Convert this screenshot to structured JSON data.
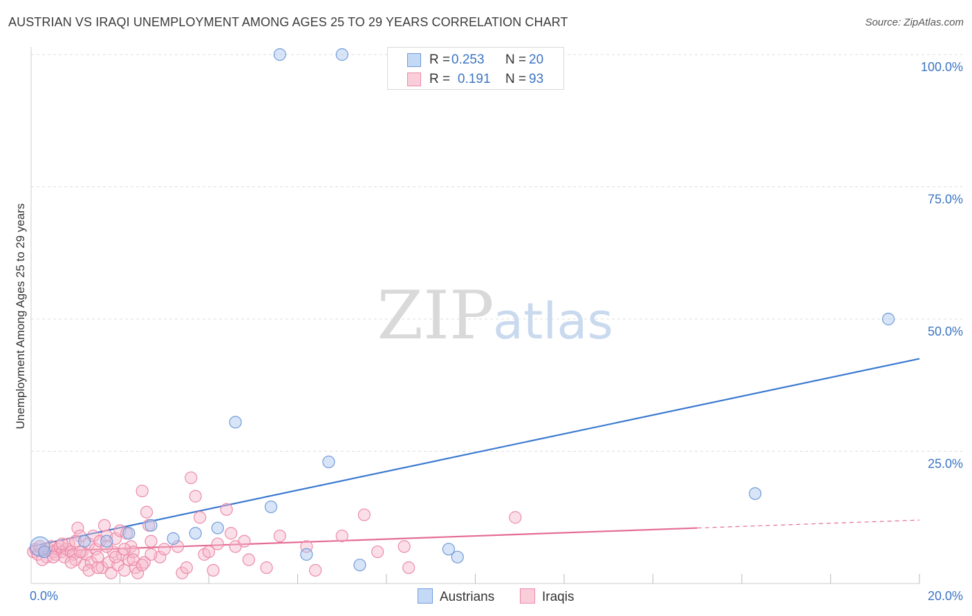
{
  "title": "AUSTRIAN VS IRAQI UNEMPLOYMENT AMONG AGES 25 TO 29 YEARS CORRELATION CHART",
  "source": "Source: ZipAtlas.com",
  "watermark": {
    "zip": "ZIP",
    "atlas": "atlas"
  },
  "colors": {
    "blue_fill": "#a9c6ef",
    "blue_stroke": "#6f9ad8",
    "blue_line": "#3a78d0",
    "pink_fill": "#f6b8cb",
    "pink_stroke": "#eb8aa8",
    "pink_line": "#e46b93",
    "axis_label": "#3b74c4",
    "grid": "#dddddd"
  },
  "legend_top": [
    {
      "r_label": "R =",
      "r_value": "0.253",
      "n_label": "N =",
      "n_value": "20",
      "series": "Austrians"
    },
    {
      "r_label": "R =",
      "r_value": "0.191",
      "n_label": "N =",
      "n_value": "93",
      "series": "Iraqis"
    }
  ],
  "legend_bottom": [
    {
      "label": "Austrians"
    },
    {
      "label": "Iraqis"
    }
  ],
  "chart_data": {
    "type": "scatter",
    "title": "AUSTRIAN VS IRAQI UNEMPLOYMENT AMONG AGES 25 TO 29 YEARS CORRELATION CHART",
    "xlabel": "",
    "ylabel": "Unemployment Among Ages 25 to 29 years",
    "xlim": [
      0,
      20
    ],
    "ylim": [
      0,
      100
    ],
    "x_tick_labels": [
      "0.0%",
      "20.0%"
    ],
    "y_tick_labels": [
      "100.0%",
      "75.0%",
      "50.0%",
      "25.0%"
    ],
    "y_ticks": [
      100,
      75,
      50,
      25
    ],
    "x_grid_ticks": [
      2,
      4,
      6,
      8,
      10,
      12,
      14,
      16,
      18,
      20
    ],
    "series": [
      {
        "name": "Austrians",
        "points": [
          [
            0.2,
            7.0
          ],
          [
            1.2,
            8.0
          ],
          [
            1.7,
            8.0
          ],
          [
            2.2,
            9.5
          ],
          [
            2.7,
            11.0
          ],
          [
            3.2,
            8.5
          ],
          [
            3.7,
            9.5
          ],
          [
            4.2,
            10.5
          ],
          [
            4.6,
            30.5
          ],
          [
            5.4,
            14.5
          ],
          [
            6.2,
            5.5
          ],
          [
            5.6,
            100
          ],
          [
            7.0,
            100
          ],
          [
            6.7,
            23.0
          ],
          [
            7.4,
            3.5
          ],
          [
            9.4,
            6.5
          ],
          [
            9.6,
            5.0
          ],
          [
            16.3,
            17.0
          ],
          [
            19.3,
            50.0
          ],
          [
            0.3,
            6.0
          ]
        ],
        "trend": {
          "x": [
            0,
            20
          ],
          "y": [
            7.0,
            42.5
          ]
        }
      },
      {
        "name": "Iraqis",
        "points": [
          [
            0.05,
            6.0
          ],
          [
            0.1,
            6.5
          ],
          [
            0.15,
            5.5
          ],
          [
            0.2,
            7.0
          ],
          [
            0.3,
            6.0
          ],
          [
            0.35,
            5.0
          ],
          [
            0.4,
            6.5
          ],
          [
            0.45,
            7.0
          ],
          [
            0.5,
            6.0
          ],
          [
            0.55,
            5.5
          ],
          [
            0.6,
            6.5
          ],
          [
            0.65,
            7.0
          ],
          [
            0.7,
            6.0
          ],
          [
            0.75,
            5.0
          ],
          [
            0.8,
            6.5
          ],
          [
            0.85,
            7.5
          ],
          [
            0.9,
            6.0
          ],
          [
            0.95,
            5.5
          ],
          [
            1.0,
            4.5
          ],
          [
            1.05,
            10.5
          ],
          [
            1.1,
            9.0
          ],
          [
            1.15,
            6.0
          ],
          [
            1.2,
            3.5
          ],
          [
            1.25,
            5.5
          ],
          [
            1.3,
            7.5
          ],
          [
            1.35,
            4.0
          ],
          [
            1.4,
            9.0
          ],
          [
            1.45,
            6.5
          ],
          [
            1.5,
            5.0
          ],
          [
            1.55,
            8.0
          ],
          [
            1.6,
            3.0
          ],
          [
            1.65,
            11.0
          ],
          [
            1.7,
            9.0
          ],
          [
            1.75,
            4.0
          ],
          [
            1.8,
            2.0
          ],
          [
            1.85,
            6.0
          ],
          [
            1.9,
            8.5
          ],
          [
            1.95,
            3.5
          ],
          [
            2.0,
            10.0
          ],
          [
            2.05,
            5.5
          ],
          [
            2.1,
            2.5
          ],
          [
            2.15,
            9.5
          ],
          [
            2.2,
            4.5
          ],
          [
            2.25,
            7.0
          ],
          [
            2.3,
            6.0
          ],
          [
            2.35,
            3.0
          ],
          [
            2.4,
            2.0
          ],
          [
            2.5,
            17.5
          ],
          [
            2.55,
            4.0
          ],
          [
            2.6,
            13.5
          ],
          [
            2.65,
            11.0
          ],
          [
            2.7,
            8.0
          ],
          [
            2.9,
            5.0
          ],
          [
            3.4,
            2.0
          ],
          [
            3.5,
            3.0
          ],
          [
            3.6,
            20.0
          ],
          [
            3.7,
            16.5
          ],
          [
            3.8,
            12.5
          ],
          [
            4.1,
            2.5
          ],
          [
            4.2,
            7.5
          ],
          [
            4.4,
            14.0
          ],
          [
            4.5,
            9.5
          ],
          [
            4.6,
            7.0
          ],
          [
            4.8,
            8.0
          ],
          [
            4.9,
            4.5
          ],
          [
            5.3,
            3.0
          ],
          [
            5.6,
            9.0
          ],
          [
            6.2,
            7.0
          ],
          [
            6.4,
            2.5
          ],
          [
            7.0,
            9.0
          ],
          [
            7.5,
            13.0
          ],
          [
            7.8,
            6.0
          ],
          [
            8.4,
            7.0
          ],
          [
            8.5,
            3.0
          ],
          [
            10.9,
            12.5
          ],
          [
            0.25,
            4.5
          ],
          [
            0.5,
            5.0
          ],
          [
            0.7,
            7.5
          ],
          [
            0.9,
            4.0
          ],
          [
            1.1,
            6.0
          ],
          [
            1.3,
            2.5
          ],
          [
            1.5,
            3.0
          ],
          [
            1.7,
            7.0
          ],
          [
            1.9,
            5.0
          ],
          [
            2.1,
            6.5
          ],
          [
            2.3,
            4.5
          ],
          [
            2.5,
            3.5
          ],
          [
            2.7,
            5.5
          ],
          [
            3.0,
            6.5
          ],
          [
            3.3,
            7.0
          ],
          [
            3.9,
            5.5
          ],
          [
            4.0,
            6.0
          ],
          [
            1.0,
            8.0
          ]
        ],
        "trend": {
          "x": [
            0,
            15
          ],
          "y": [
            6.0,
            10.5
          ]
        },
        "trend_dashed": {
          "x": [
            15,
            20
          ],
          "y": [
            10.5,
            12.0
          ]
        }
      }
    ]
  }
}
